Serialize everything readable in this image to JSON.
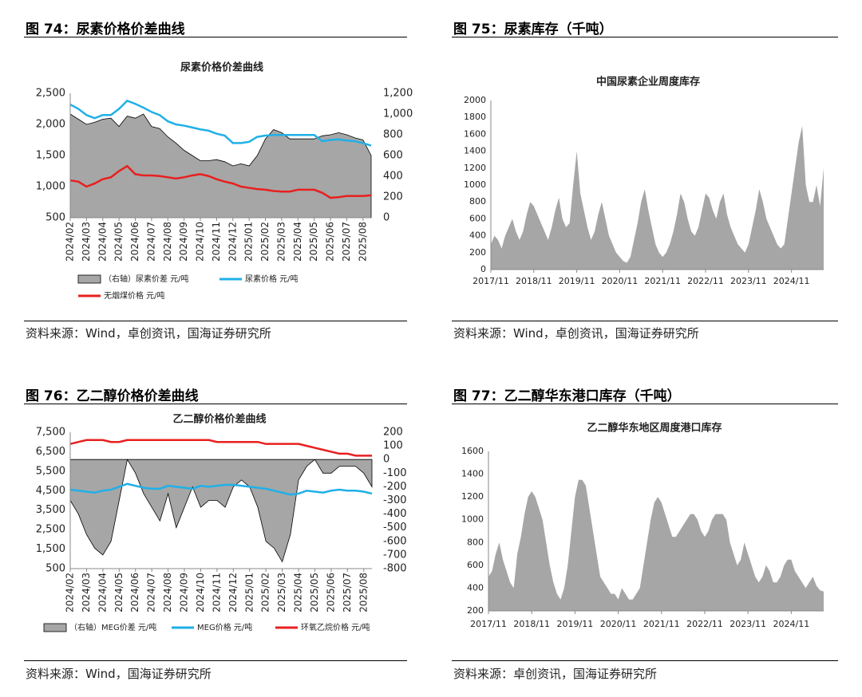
{
  "figures": [
    {
      "caption": "图 74：尿素价格价差曲线",
      "source": "资料来源：Wind，卓创资讯，国海证券研究所"
    },
    {
      "caption": "图 75：尿素库存（千吨）",
      "source": "资料来源：Wind，卓创资讯，国海证券研究所"
    },
    {
      "caption": "图 76：乙二醇价格价差曲线",
      "source": "资料来源：Wind，国海证券研究所"
    },
    {
      "caption": "图 77：乙二醇华东港口库存（千吨）",
      "source": "资料来源：卓创资讯，国海证券研究所"
    }
  ],
  "chart_data": [
    {
      "type": "combo",
      "title": "尿素价格价差曲线",
      "legend": "bottom",
      "grid": false,
      "categories": [
        "2024/02",
        null,
        "2024/03",
        null,
        "2024/04",
        null,
        "2024/05",
        null,
        "2024/06",
        null,
        "2024/07",
        null,
        "2024/08",
        null,
        "2024/09",
        null,
        "2024/10",
        null,
        "2024/11",
        null,
        "2024/12",
        null,
        "2025/01",
        null,
        "2025/02",
        null,
        "2025/03",
        null,
        "2025/04",
        null,
        "2025/05",
        null,
        "2025/06",
        null,
        "2025/07",
        null,
        "2025/08",
        null
      ],
      "ylim": [
        500,
        2500
      ],
      "yticks": [
        500,
        {
          "value": 1000,
          "label": "1,000"
        },
        {
          "value": 1500,
          "label": "1,500"
        },
        {
          "value": 2000,
          "label": "2,000"
        },
        {
          "value": 2500,
          "label": "2,500"
        }
      ],
      "y2lim": [
        0,
        1200
      ],
      "y2ticks": [
        0,
        200,
        400,
        600,
        800,
        {
          "value": 1000,
          "label": "1,000"
        },
        {
          "value": 1200,
          "label": "1,200"
        }
      ],
      "series": [
        {
          "name": "（右轴）尿素价差 元/吨",
          "type": "area",
          "axis": "y2",
          "color": "#a6a6a6",
          "values": [
            1000,
            950,
            900,
            920,
            950,
            960,
            880,
            980,
            960,
            1000,
            880,
            860,
            780,
            720,
            650,
            600,
            550,
            550,
            560,
            540,
            500,
            520,
            500,
            600,
            760,
            850,
            820,
            760,
            760,
            760,
            760,
            790,
            800,
            820,
            800,
            770,
            750,
            600
          ]
        },
        {
          "name": "尿素价格 元/吨",
          "type": "line",
          "axis": "y",
          "color": "#1fb0e8",
          "values": [
            2320,
            2250,
            2150,
            2100,
            2150,
            2150,
            2250,
            2380,
            2330,
            2270,
            2200,
            2150,
            2050,
            2000,
            1980,
            1950,
            1920,
            1900,
            1850,
            1820,
            1700,
            1700,
            1720,
            1800,
            1820,
            1830,
            1830,
            1830,
            1830,
            1830,
            1830,
            1730,
            1750,
            1760,
            1740,
            1730,
            1700,
            1660
          ]
        },
        {
          "name": "无烟煤价格 元/吨",
          "type": "line",
          "axis": "y",
          "color": "#e8201f",
          "values": [
            1100,
            1080,
            1000,
            1050,
            1120,
            1150,
            1250,
            1330,
            1200,
            1180,
            1180,
            1170,
            1150,
            1130,
            1150,
            1180,
            1200,
            1170,
            1120,
            1080,
            1050,
            1000,
            980,
            960,
            950,
            930,
            920,
            920,
            950,
            950,
            950,
            900,
            820,
            830,
            850,
            850,
            850,
            860
          ]
        }
      ]
    },
    {
      "type": "area",
      "title": "中国尿素企业周度库存",
      "grid": false,
      "color": "#a6a6a6",
      "categories": [
        "2017/11",
        null,
        null,
        null,
        null,
        null,
        null,
        null,
        null,
        null,
        null,
        null,
        "2018/11",
        null,
        null,
        null,
        null,
        null,
        null,
        null,
        null,
        null,
        null,
        null,
        "2019/11",
        null,
        null,
        null,
        null,
        null,
        null,
        null,
        null,
        null,
        null,
        null,
        "2020/11",
        null,
        null,
        null,
        null,
        null,
        null,
        null,
        null,
        null,
        null,
        null,
        "2021/11",
        null,
        null,
        null,
        null,
        null,
        null,
        null,
        null,
        null,
        null,
        null,
        "2022/11",
        null,
        null,
        null,
        null,
        null,
        null,
        null,
        null,
        null,
        null,
        null,
        "2023/11",
        null,
        null,
        null,
        null,
        null,
        null,
        null,
        null,
        null,
        null,
        null,
        "2024/11",
        null,
        null,
        null,
        null,
        null,
        null,
        null,
        null,
        null
      ],
      "ylim": [
        0,
        2000
      ],
      "yticks": [
        0,
        200,
        400,
        600,
        800,
        1000,
        1200,
        1400,
        1600,
        1800,
        2000
      ],
      "values": [
        300,
        400,
        350,
        250,
        400,
        500,
        600,
        450,
        350,
        450,
        650,
        800,
        750,
        650,
        550,
        450,
        350,
        500,
        700,
        850,
        600,
        500,
        550,
        1000,
        1400,
        900,
        700,
        500,
        350,
        450,
        650,
        800,
        600,
        400,
        300,
        200,
        150,
        100,
        80,
        150,
        350,
        550,
        800,
        950,
        700,
        500,
        300,
        200,
        150,
        200,
        300,
        450,
        650,
        900,
        800,
        600,
        450,
        400,
        500,
        700,
        900,
        850,
        700,
        600,
        800,
        900,
        650,
        500,
        400,
        300,
        250,
        200,
        300,
        500,
        700,
        950,
        800,
        600,
        500,
        400,
        300,
        250,
        300,
        600,
        900,
        1200,
        1500,
        1700,
        1000,
        800,
        800,
        1000,
        750,
        1200
      ]
    },
    {
      "type": "combo",
      "title": "乙二醇价格价差曲线",
      "legend": "bottom",
      "grid": false,
      "categories": [
        "2024/02",
        null,
        "2024/03",
        null,
        "2024/04",
        null,
        "2024/05",
        null,
        "2024/06",
        null,
        "2024/07",
        null,
        "2024/08",
        null,
        "2024/09",
        null,
        "2024/10",
        null,
        "2024/11",
        null,
        "2024/12",
        null,
        "2025/01",
        null,
        "2025/02",
        null,
        "2025/03",
        null,
        "2025/04",
        null,
        "2025/05",
        null,
        "2025/06",
        null,
        "2025/07",
        null,
        "2025/08",
        null
      ],
      "ylim": [
        500,
        7500
      ],
      "yticks": [
        500,
        {
          "value": 1500,
          "label": "1,500"
        },
        {
          "value": 2500,
          "label": "2,500"
        },
        {
          "value": 3500,
          "label": "3,500"
        },
        {
          "value": 4500,
          "label": "4,500"
        },
        {
          "value": 5500,
          "label": "5,500"
        },
        {
          "value": 6500,
          "label": "6,500"
        },
        {
          "value": 7500,
          "label": "7,500"
        }
      ],
      "y2lim": [
        -800,
        200
      ],
      "y2ticks": [
        -800,
        -700,
        -600,
        -500,
        -400,
        -300,
        -200,
        -100,
        0,
        100,
        200
      ],
      "series": [
        {
          "name": "（右轴）MEG价差 元/吨",
          "type": "area",
          "axis": "y2",
          "color": "#a6a6a6",
          "values": [
            -300,
            -400,
            -550,
            -650,
            -700,
            -600,
            -300,
            0,
            -100,
            -250,
            -350,
            -450,
            -250,
            -500,
            -350,
            -200,
            -350,
            -300,
            -300,
            -350,
            -200,
            -150,
            -200,
            -350,
            -600,
            -650,
            -750,
            -550,
            -150,
            -50,
            0,
            -100,
            -100,
            -50,
            -50,
            -50,
            -100,
            -200
          ]
        },
        {
          "name": "MEG价格 元/吨",
          "type": "line",
          "axis": "y",
          "color": "#1fb0e8",
          "values": [
            4550,
            4500,
            4450,
            4400,
            4500,
            4550,
            4700,
            4850,
            4750,
            4650,
            4600,
            4600,
            4750,
            4700,
            4650,
            4600,
            4750,
            4700,
            4750,
            4800,
            4800,
            4750,
            4700,
            4650,
            4600,
            4500,
            4400,
            4300,
            4350,
            4500,
            4450,
            4400,
            4500,
            4550,
            4500,
            4500,
            4450,
            4350
          ]
        },
        {
          "name": "环氧乙烷价格 元/吨",
          "type": "line",
          "axis": "y",
          "color": "#e8201f",
          "values": [
            6900,
            7000,
            7100,
            7100,
            7100,
            7000,
            7000,
            7100,
            7100,
            7100,
            7100,
            7100,
            7100,
            7100,
            7100,
            7100,
            7100,
            7100,
            7000,
            7000,
            7000,
            7000,
            7000,
            7000,
            6900,
            6900,
            6900,
            6900,
            6900,
            6800,
            6700,
            6600,
            6500,
            6400,
            6400,
            6300,
            6300,
            6300
          ]
        }
      ]
    },
    {
      "type": "area",
      "title": "乙二醇华东地区周度港口库存",
      "grid": false,
      "color": "#a6a6a6",
      "categories": [
        "2017/11",
        null,
        null,
        null,
        null,
        null,
        null,
        null,
        null,
        null,
        null,
        null,
        "2018/11",
        null,
        null,
        null,
        null,
        null,
        null,
        null,
        null,
        null,
        null,
        null,
        "2019/11",
        null,
        null,
        null,
        null,
        null,
        null,
        null,
        null,
        null,
        null,
        null,
        "2020/11",
        null,
        null,
        null,
        null,
        null,
        null,
        null,
        null,
        null,
        null,
        null,
        "2021/11",
        null,
        null,
        null,
        null,
        null,
        null,
        null,
        null,
        null,
        null,
        null,
        "2022/11",
        null,
        null,
        null,
        null,
        null,
        null,
        null,
        null,
        null,
        null,
        null,
        "2023/11",
        null,
        null,
        null,
        null,
        null,
        null,
        null,
        null,
        null,
        null,
        null,
        "2024/11",
        null,
        null,
        null,
        null,
        null,
        null,
        null,
        null,
        null
      ],
      "ylim": [
        200,
        1600
      ],
      "yticks": [
        200,
        400,
        600,
        800,
        1000,
        1200,
        1400,
        1600
      ],
      "values": [
        500,
        550,
        700,
        800,
        650,
        550,
        450,
        400,
        700,
        850,
        1050,
        1200,
        1250,
        1200,
        1100,
        1000,
        800,
        600,
        450,
        350,
        300,
        400,
        600,
        900,
        1200,
        1350,
        1350,
        1300,
        1100,
        900,
        700,
        500,
        450,
        400,
        350,
        350,
        300,
        400,
        350,
        300,
        300,
        350,
        400,
        600,
        800,
        1000,
        1150,
        1200,
        1150,
        1050,
        950,
        850,
        850,
        900,
        950,
        1000,
        1050,
        1050,
        1000,
        900,
        850,
        900,
        1000,
        1050,
        1050,
        1050,
        1000,
        800,
        700,
        600,
        650,
        800,
        700,
        600,
        500,
        450,
        500,
        600,
        550,
        450,
        450,
        500,
        600,
        650,
        650,
        550,
        500,
        450,
        400,
        450,
        500,
        420,
        380,
        370
      ]
    }
  ]
}
